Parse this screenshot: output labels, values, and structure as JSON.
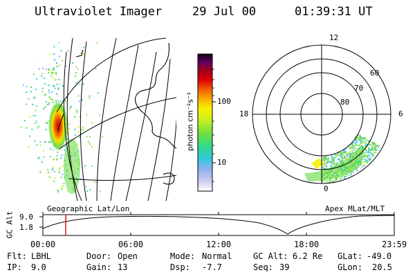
{
  "header": {
    "instrument": "Ultraviolet Imager",
    "date": "29 Jul 00",
    "time": "01:39:31 UT"
  },
  "colorbar": {
    "label": "photon cm⁻²s⁻¹",
    "ticks": [
      "100",
      "10"
    ]
  },
  "geo_panel": {
    "caption": "Geographic Lat/Lon"
  },
  "polar_panel": {
    "caption": "Apex MLat/MLT",
    "mlt_labels": [
      "12",
      "18",
      "6",
      "0"
    ],
    "mlat_labels": [
      "60",
      "70",
      "80"
    ]
  },
  "altitude_plot": {
    "ylabel": "GC Alt",
    "ytick_labels": [
      "9.0",
      "1.8"
    ],
    "xtick_labels": [
      "00:00",
      "06:00",
      "12:00",
      "18:00",
      "23:59"
    ]
  },
  "info": {
    "flt_label": "Flt:",
    "flt_value": "LBHL",
    "ip_label": "IP:",
    "ip_value": "9.0",
    "door_label": "Door:",
    "door_value": "Open",
    "gain_label": "Gain:",
    "gain_value": "13",
    "mode_label": "Mode:",
    "mode_value": "Normal",
    "dsp_label": "Dsp:",
    "dsp_value": "-7.7",
    "gcalt_label": "GC Alt:",
    "gcalt_value": "6.2 Re",
    "seq_label": "Seq:",
    "seq_value": "39",
    "glat_label": "GLat:",
    "glat_value": "-49.0",
    "glon_label": "GLon:",
    "glon_value": "20.5"
  },
  "colors": {
    "marker": "#e01010",
    "frame": "#000000"
  }
}
